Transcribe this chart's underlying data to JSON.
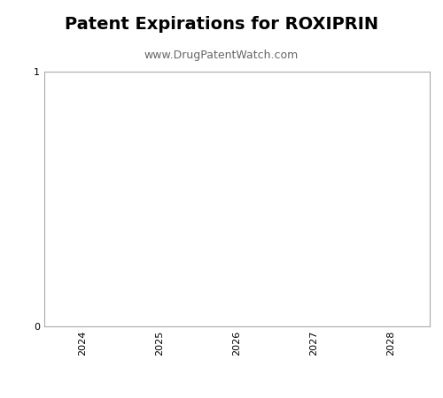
{
  "title": "Patent Expirations for ROXIPRIN",
  "subtitle": "www.DrugPatentWatch.com",
  "title_fontsize": 14,
  "subtitle_fontsize": 9,
  "title_fontweight": "bold",
  "xlim": [
    2023.5,
    2028.5
  ],
  "ylim": [
    0,
    1
  ],
  "xticks": [
    2024,
    2025,
    2026,
    2027,
    2028
  ],
  "yticks": [
    0,
    1
  ],
  "background_color": "#ffffff",
  "axes_edgecolor": "#aaaaaa",
  "tick_color": "#000000",
  "tick_labelsize": 8,
  "xlabel": "",
  "ylabel": ""
}
